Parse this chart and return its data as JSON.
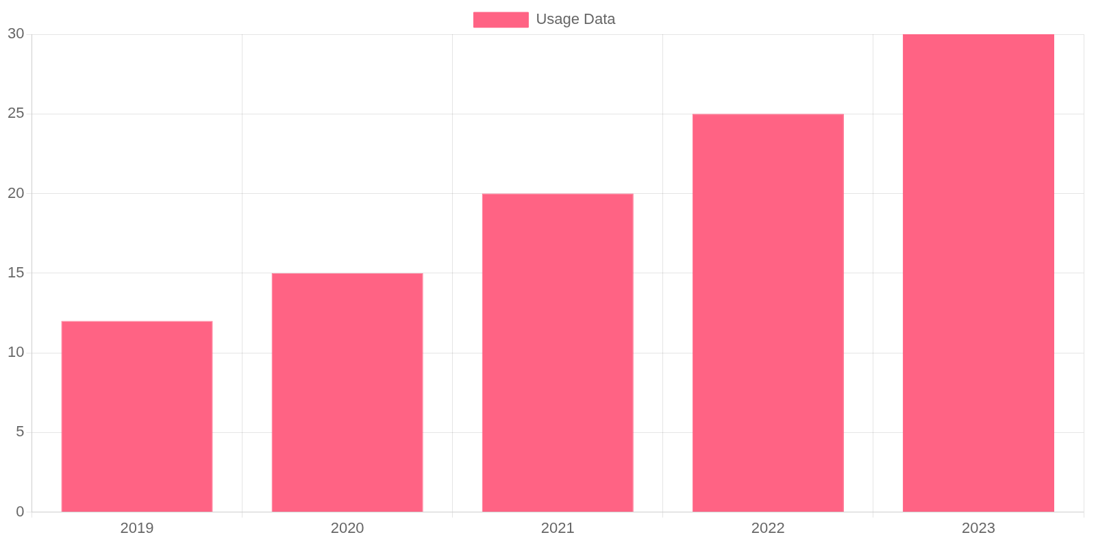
{
  "chart_data": {
    "type": "bar",
    "categories": [
      "2019",
      "2020",
      "2021",
      "2022",
      "2023"
    ],
    "series": [
      {
        "name": "Usage Data",
        "color": "#ff6384",
        "values": [
          12,
          15,
          20,
          25,
          30
        ]
      }
    ],
    "ylim": [
      0,
      30
    ],
    "yticks": [
      0,
      5,
      10,
      15,
      20,
      25,
      30
    ],
    "grid": true,
    "legend": "top"
  }
}
